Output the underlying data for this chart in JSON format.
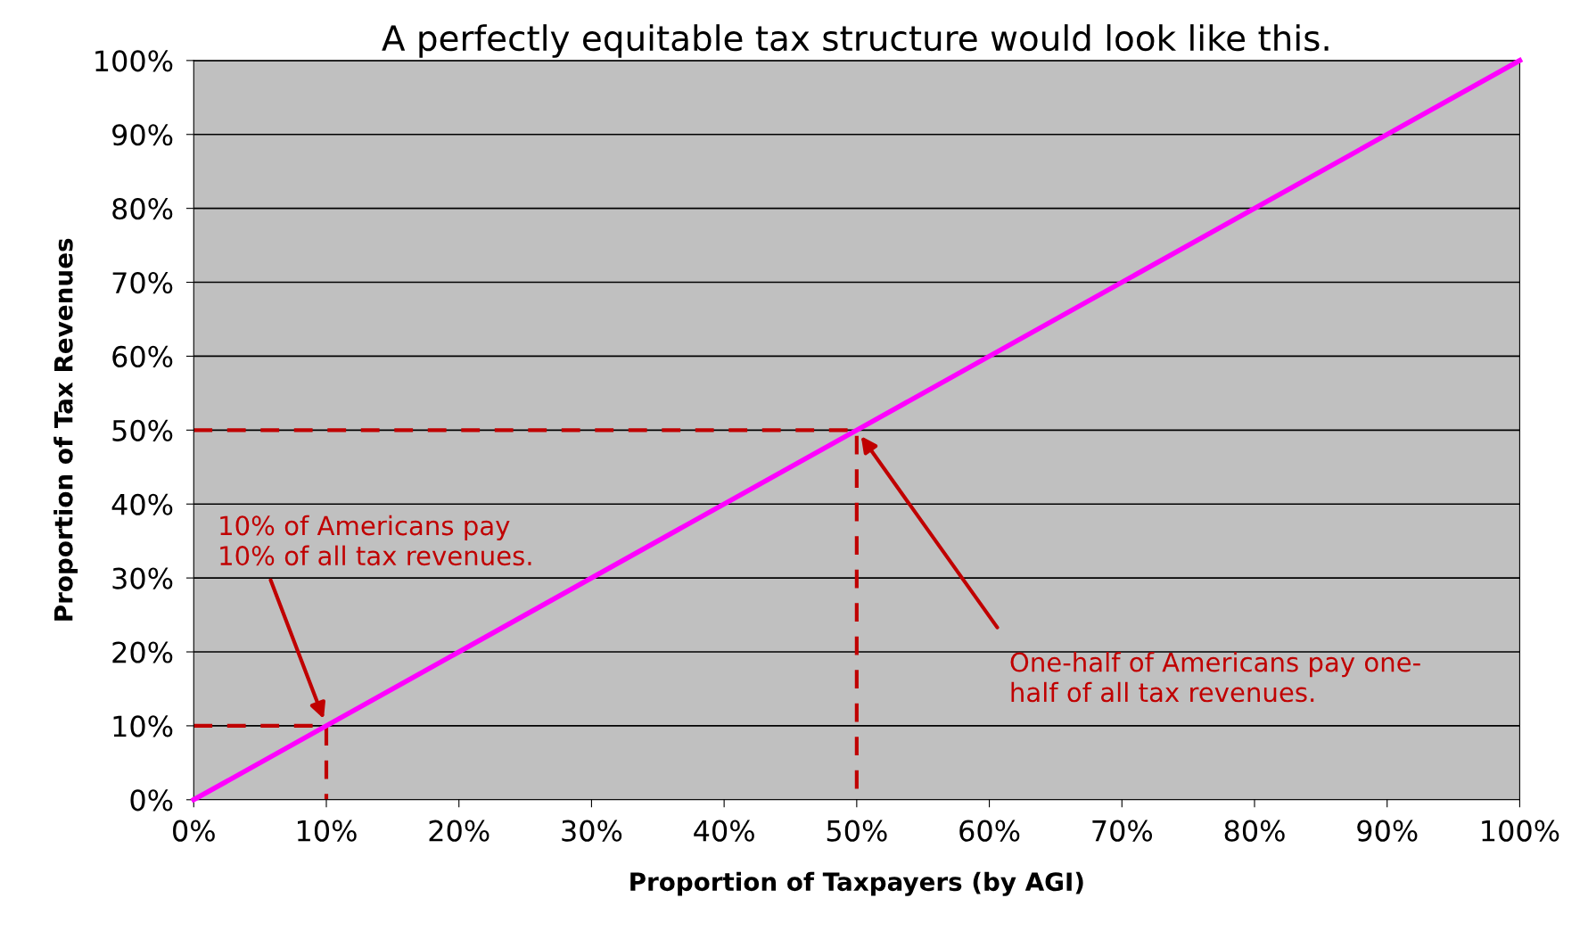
{
  "chart_data": {
    "type": "line",
    "title": "A perfectly equitable tax structure would look like this.",
    "xlabel": "Proportion of Taxpayers (by AGI)",
    "ylabel": "Proportion of Tax Revenues",
    "series": [
      {
        "color": "#ff00ff",
        "x": [
          0,
          10,
          50,
          100
        ],
        "values": [
          0,
          10,
          50,
          100
        ],
        "line_style": "solid",
        "marker": "none"
      },
      {
        "color": "#c00000",
        "x": [
          0,
          10,
          10
        ],
        "values": [
          10,
          10,
          0
        ],
        "line_style": "dashed",
        "marker": "none"
      },
      {
        "color": "#c00000",
        "x": [
          0,
          50,
          50
        ],
        "values": [
          50,
          50,
          0
        ],
        "line_style": "dashed",
        "marker": "none"
      }
    ],
    "xlim": [
      0,
      100
    ],
    "ylim": [
      0,
      100
    ],
    "xticks": [
      {
        "value": 0,
        "label": "0%"
      },
      {
        "value": 10,
        "label": "10%"
      },
      {
        "value": 20,
        "label": "20%"
      },
      {
        "value": 30,
        "label": "30%"
      },
      {
        "value": 40,
        "label": "40%"
      },
      {
        "value": 50,
        "label": "50%"
      },
      {
        "value": 60,
        "label": "60%"
      },
      {
        "value": 70,
        "label": "70%"
      },
      {
        "value": 80,
        "label": "80%"
      },
      {
        "value": 90,
        "label": "90%"
      },
      {
        "value": 100,
        "label": "100%"
      }
    ],
    "yticks": [
      {
        "value": 0,
        "label": "0%"
      },
      {
        "value": 10,
        "label": "10%"
      },
      {
        "value": 20,
        "label": "20%"
      },
      {
        "value": 30,
        "label": "30%"
      },
      {
        "value": 40,
        "label": "40%"
      },
      {
        "value": 50,
        "label": "50%"
      },
      {
        "value": 60,
        "label": "60%"
      },
      {
        "value": 70,
        "label": "70%"
      },
      {
        "value": 80,
        "label": "80%"
      },
      {
        "value": 90,
        "label": "90%"
      },
      {
        "value": 100,
        "label": "100%"
      }
    ],
    "grid": "y",
    "annotations": [
      "10% of Americans pay\n10% of all tax revenues.",
      "One-half of Americans pay one-\nhalf of all tax revenues."
    ]
  }
}
